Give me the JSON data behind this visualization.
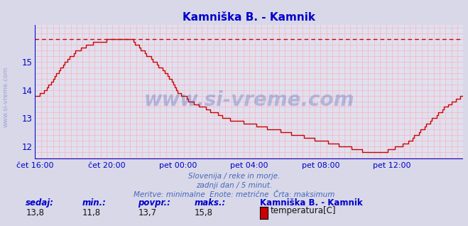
{
  "title": "Kamniška B. - Kamnik",
  "title_color": "#0000cc",
  "bg_color": "#d8d8e8",
  "plot_bg_color": "#e0e0f0",
  "grid_color_minor": "#ffaaaa",
  "line_color": "#cc0000",
  "dashed_line_color": "#cc0000",
  "axis_color": "#0000cc",
  "watermark": "www.si-vreme.com",
  "watermark_color": "#2244aa",
  "watermark_alpha": 0.25,
  "subtitle1": "Slovenija / reke in morje.",
  "subtitle2": "zadnji dan / 5 minut.",
  "subtitle3": "Meritve: minimalne  Enote: metrične  Črta: maksimum",
  "subtitle_color": "#4466bb",
  "label_sedaj": "sedaj:",
  "label_min": "min.:",
  "label_povpr": "povpr.:",
  "label_maks": "maks.:",
  "val_sedaj": "13,8",
  "val_min": "11,8",
  "val_povpr": "13,7",
  "val_maks": "15,8",
  "legend_station": "Kamniška B. - Kamnik",
  "legend_label": "temperatura[C]",
  "legend_color": "#cc0000",
  "ylim": [
    11.55,
    16.3
  ],
  "yticks": [
    12,
    13,
    14,
    15
  ],
  "max_line_y": 15.8,
  "xtick_labels": [
    "čet 16:00",
    "čet 20:00",
    "pet 00:00",
    "pet 04:00",
    "pet 08:00",
    "pet 12:00"
  ],
  "xtick_positions": [
    0,
    48,
    96,
    144,
    192,
    240
  ],
  "n_points": 289
}
